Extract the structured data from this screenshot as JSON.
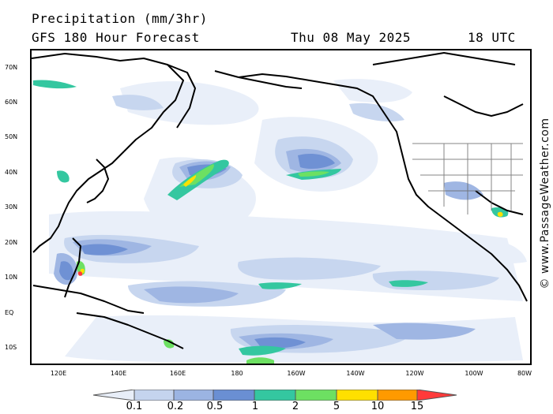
{
  "header": {
    "title": "Precipitation (mm/3hr)",
    "subtitle": "GFS 180 Hour Forecast",
    "date": "Thu 08 May 2025",
    "utc": "18 UTC"
  },
  "watermark": "© www.PassageWeather.com",
  "lat_labels": [
    "70N",
    "60N",
    "50N",
    "40N",
    "30N",
    "20N",
    "10N",
    "EQ",
    "10S"
  ],
  "lon_labels": [
    "120E",
    "140E",
    "160E",
    "180",
    "160W",
    "140W",
    "120W",
    "100W",
    "80W"
  ],
  "legend": {
    "labels": [
      "0.1",
      "0.2",
      "0.5",
      "1",
      "2",
      "5",
      "10",
      "15"
    ],
    "colors": [
      "#e8eef8",
      "#c5d4ee",
      "#9bb4e2",
      "#6a8fd3",
      "#34c7a0",
      "#6de062",
      "#ffe000",
      "#ff9a00",
      "#ff3a3a"
    ]
  },
  "colors": {
    "land_outline": "#000000",
    "state_borders": "#666666",
    "very_light": "#e9eff9",
    "light": "#c7d6ef",
    "medium": "#9fb6e3",
    "dark_blue": "#6f91d4",
    "teal": "#34c7a0",
    "green": "#6de062",
    "yellow": "#ffe000",
    "orange": "#ff9a00",
    "red": "#ff3a3a"
  }
}
